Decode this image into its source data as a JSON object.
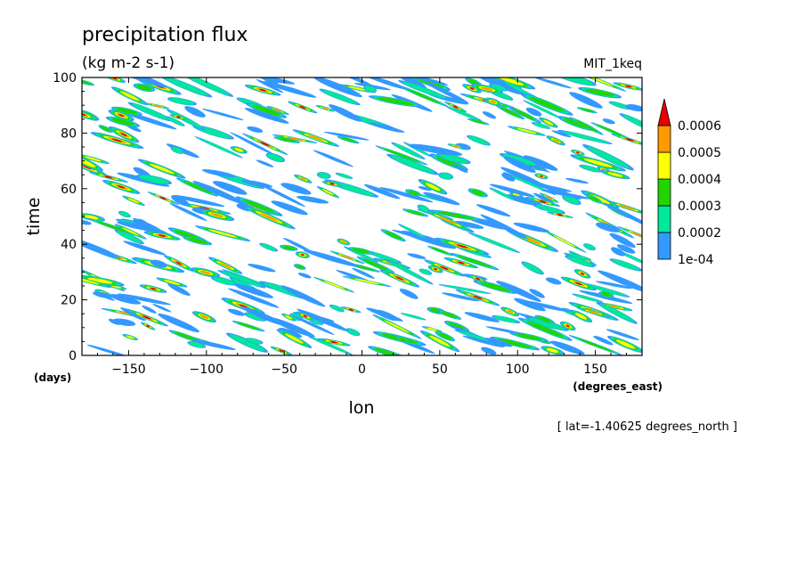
{
  "chart_data": {
    "type": "heatmap",
    "title": "precipitation flux",
    "subtitle": "(kg m-2 s-1)",
    "run_label": "MIT_1keq",
    "xlabel": "lon",
    "ylabel": "time",
    "x_units": "(degrees_east)",
    "y_units": "(days)",
    "xlim": [
      -180,
      180
    ],
    "ylim": [
      0,
      100
    ],
    "x_ticks": [
      -150,
      -100,
      -50,
      0,
      50,
      100,
      150
    ],
    "y_ticks": [
      0,
      20,
      40,
      60,
      80,
      100
    ],
    "footnote": "[ lat=-1.40625 degrees_north ]",
    "colorbar": {
      "labels": [
        "1e-04",
        "0.0002",
        "0.0003",
        "0.0004",
        "0.0005",
        "0.0006"
      ],
      "levels": [
        0.0001,
        0.0002,
        0.0003,
        0.0004,
        0.0005,
        0.0006
      ],
      "colors": [
        "#3399ff",
        "#00e89a",
        "#22d400",
        "#ffff00",
        "#ff9900",
        "#e60000"
      ],
      "extend": "max"
    },
    "grid": false
  }
}
